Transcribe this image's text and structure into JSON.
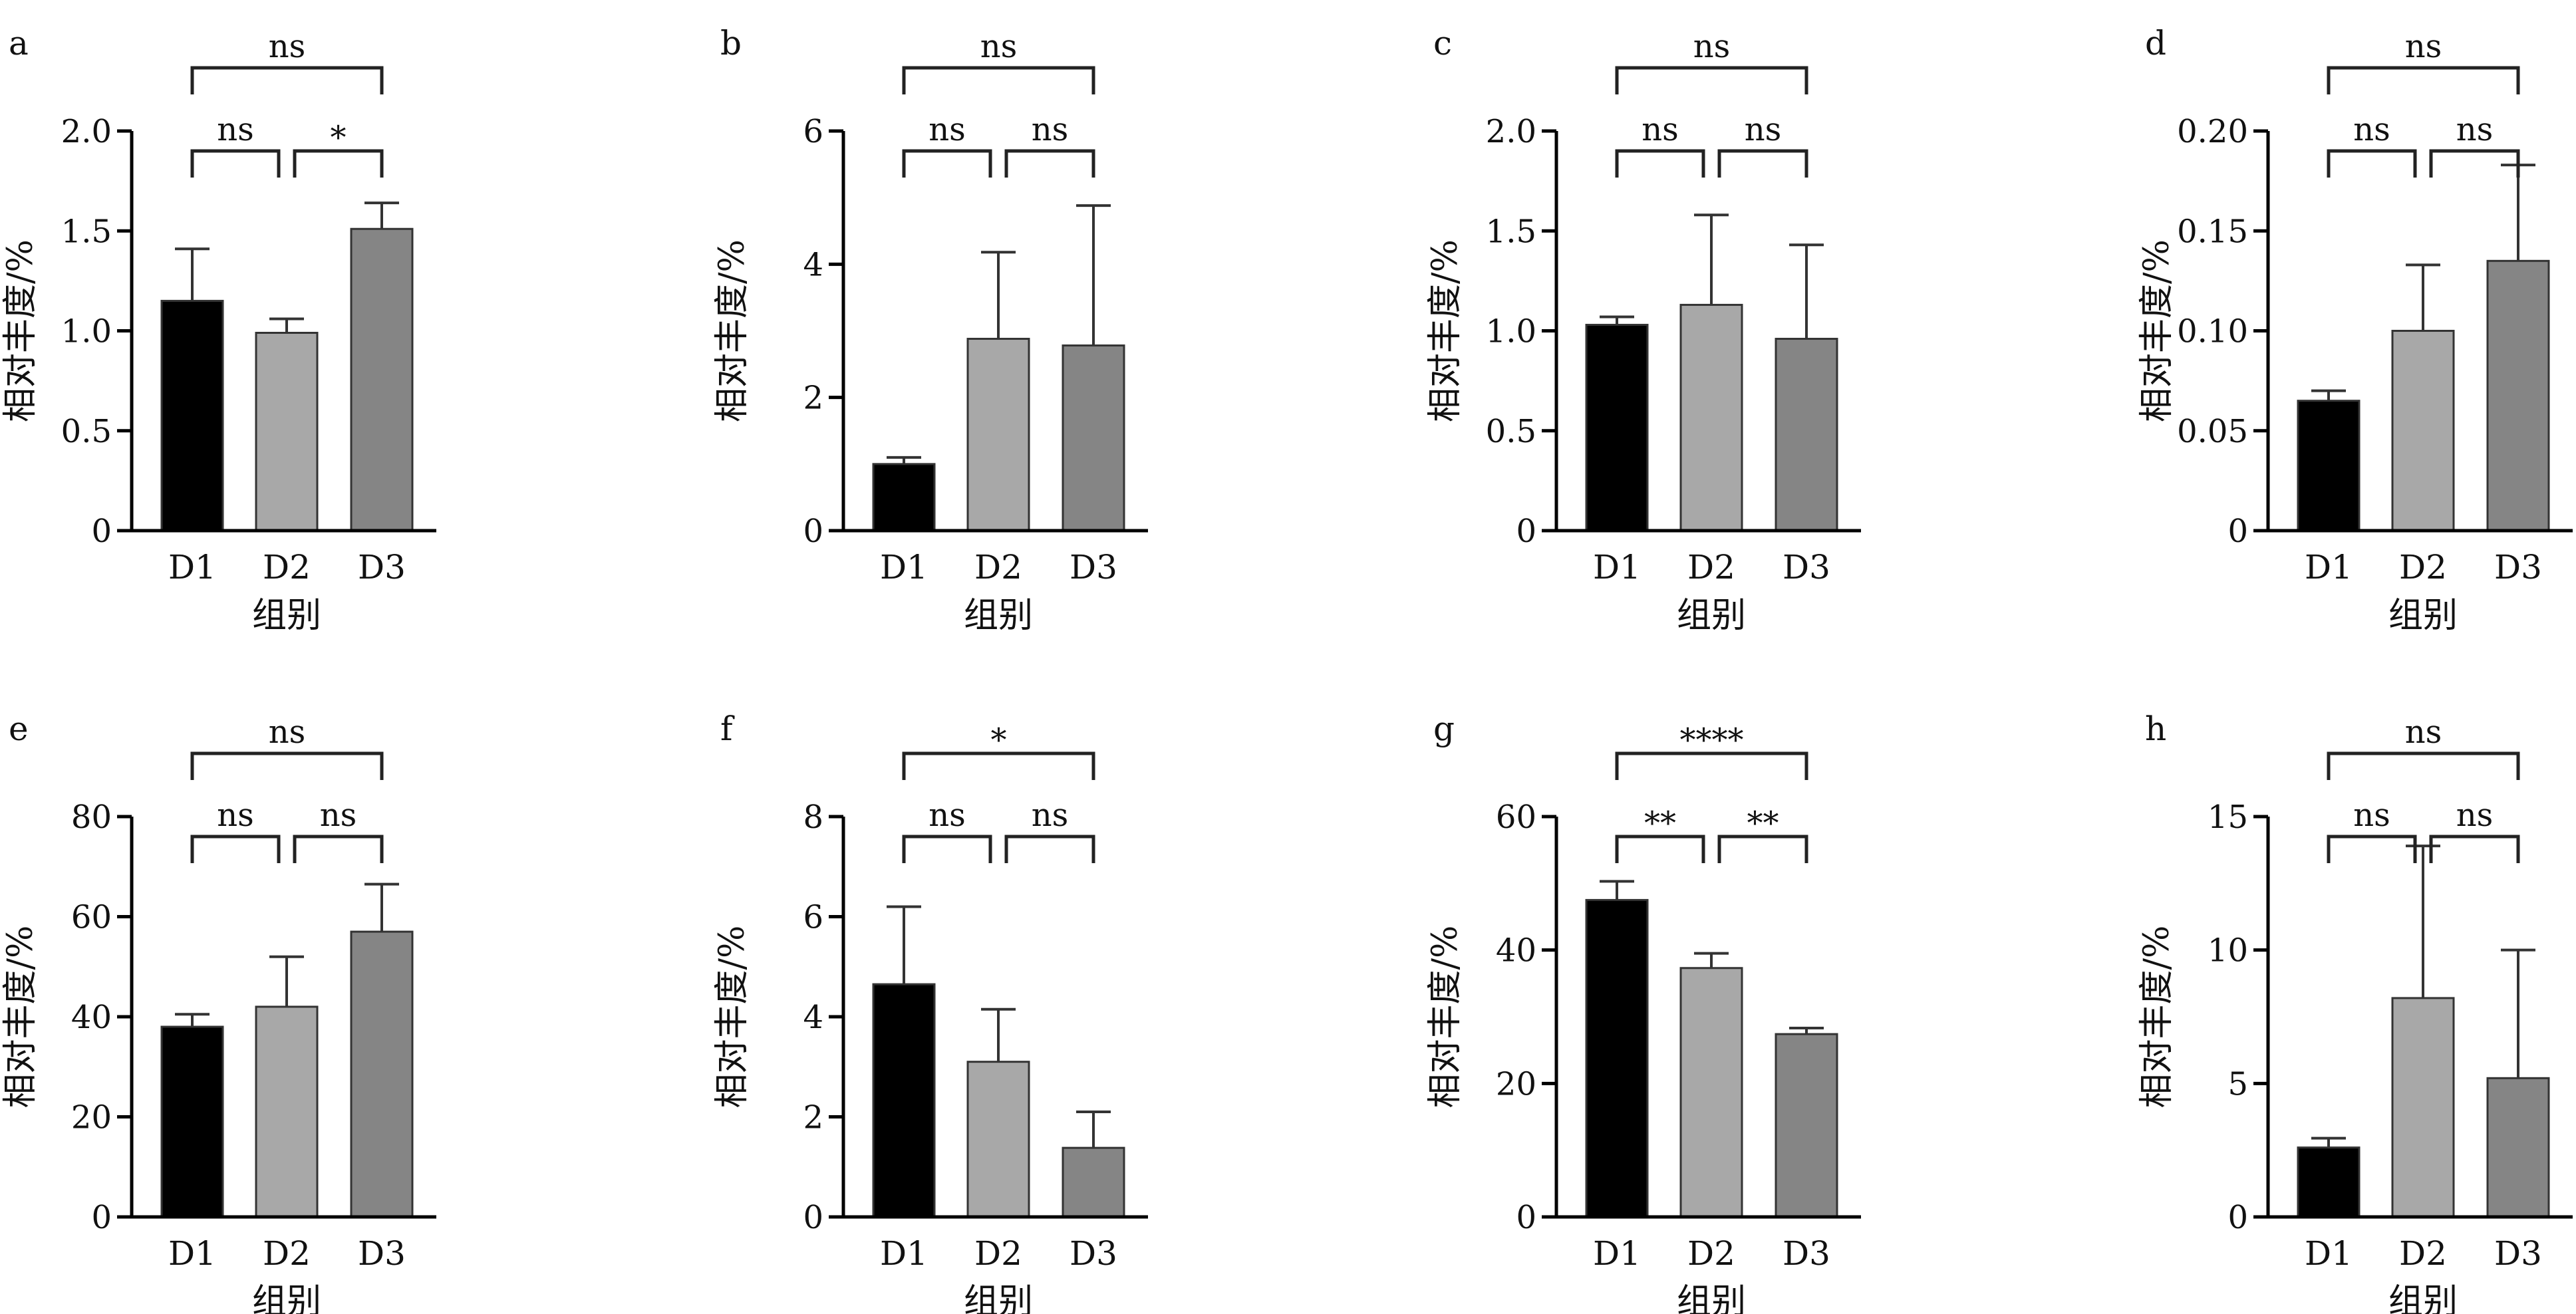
{
  "colors": {
    "D1": "#000000",
    "D2": "#a8a8a8",
    "D3": "#858585",
    "axis": "#000000",
    "bar_outline": "#333333"
  },
  "chart_data": [
    {
      "panel": "a",
      "type": "bar",
      "categories": [
        "D1",
        "D2",
        "D3"
      ],
      "values": [
        1.15,
        0.99,
        1.51
      ],
      "errors": [
        0.26,
        0.07,
        0.13
      ],
      "xlabel": "组别",
      "ylabel": "相对丰度/%",
      "ylim": [
        0,
        2.0
      ],
      "yticks": [
        "0",
        "0.5",
        "1.0",
        "1.5",
        "2.0"
      ],
      "comparisons": [
        {
          "pair": [
            "D1",
            "D2"
          ],
          "label": "ns"
        },
        {
          "pair": [
            "D2",
            "D3"
          ],
          "label": "*"
        },
        {
          "pair": [
            "D1",
            "D3"
          ],
          "label": "ns"
        }
      ]
    },
    {
      "panel": "b",
      "type": "bar",
      "categories": [
        "D1",
        "D2",
        "D3"
      ],
      "values": [
        1.0,
        2.88,
        2.78
      ],
      "errors": [
        0.1,
        1.3,
        2.1
      ],
      "xlabel": "组别",
      "ylabel": "相对丰度/%",
      "ylim": [
        0,
        6
      ],
      "yticks": [
        "0",
        "2",
        "4",
        "6"
      ],
      "comparisons": [
        {
          "pair": [
            "D1",
            "D2"
          ],
          "label": "ns"
        },
        {
          "pair": [
            "D2",
            "D3"
          ],
          "label": "ns"
        },
        {
          "pair": [
            "D1",
            "D3"
          ],
          "label": "ns"
        }
      ]
    },
    {
      "panel": "c",
      "type": "bar",
      "categories": [
        "D1",
        "D2",
        "D3"
      ],
      "values": [
        1.03,
        1.13,
        0.96
      ],
      "errors": [
        0.04,
        0.45,
        0.47
      ],
      "xlabel": "组别",
      "ylabel": "相对丰度/%",
      "ylim": [
        0,
        2.0
      ],
      "yticks": [
        "0",
        "0.5",
        "1.0",
        "1.5",
        "2.0"
      ],
      "comparisons": [
        {
          "pair": [
            "D1",
            "D2"
          ],
          "label": "ns"
        },
        {
          "pair": [
            "D2",
            "D3"
          ],
          "label": "ns"
        },
        {
          "pair": [
            "D1",
            "D3"
          ],
          "label": "ns"
        }
      ]
    },
    {
      "panel": "d",
      "type": "bar",
      "categories": [
        "D1",
        "D2",
        "D3"
      ],
      "values": [
        0.065,
        0.1,
        0.135
      ],
      "errors": [
        0.005,
        0.033,
        0.048
      ],
      "xlabel": "组别",
      "ylabel": "相对丰度/%",
      "ylim": [
        0,
        0.2
      ],
      "yticks": [
        "0",
        "0.05",
        "0.10",
        "0.15",
        "0.20"
      ],
      "comparisons": [
        {
          "pair": [
            "D1",
            "D2"
          ],
          "label": "ns"
        },
        {
          "pair": [
            "D2",
            "D3"
          ],
          "label": "ns"
        },
        {
          "pair": [
            "D1",
            "D3"
          ],
          "label": "ns"
        }
      ]
    },
    {
      "panel": "e",
      "type": "bar",
      "categories": [
        "D1",
        "D2",
        "D3"
      ],
      "values": [
        38,
        42,
        57
      ],
      "errors": [
        2.5,
        10,
        9.5
      ],
      "xlabel": "组别",
      "ylabel": "相对丰度/%",
      "ylim": [
        0,
        80
      ],
      "yticks": [
        "0",
        "20",
        "40",
        "60",
        "80"
      ],
      "comparisons": [
        {
          "pair": [
            "D1",
            "D2"
          ],
          "label": "ns"
        },
        {
          "pair": [
            "D2",
            "D3"
          ],
          "label": "ns"
        },
        {
          "pair": [
            "D1",
            "D3"
          ],
          "label": "ns"
        }
      ]
    },
    {
      "panel": "f",
      "type": "bar",
      "categories": [
        "D1",
        "D2",
        "D3"
      ],
      "values": [
        4.65,
        3.1,
        1.38
      ],
      "errors": [
        1.55,
        1.05,
        0.72
      ],
      "xlabel": "组别",
      "ylabel": "相对丰度/%",
      "ylim": [
        0,
        8
      ],
      "yticks": [
        "0",
        "2",
        "4",
        "6",
        "8"
      ],
      "comparisons": [
        {
          "pair": [
            "D1",
            "D2"
          ],
          "label": "ns"
        },
        {
          "pair": [
            "D2",
            "D3"
          ],
          "label": "ns"
        },
        {
          "pair": [
            "D1",
            "D3"
          ],
          "label": "*"
        }
      ]
    },
    {
      "panel": "g",
      "type": "bar",
      "categories": [
        "D1",
        "D2",
        "D3"
      ],
      "values": [
        47.5,
        37.3,
        27.4
      ],
      "errors": [
        2.8,
        2.2,
        0.9
      ],
      "xlabel": "组别",
      "ylabel": "相对丰度/%",
      "ylim": [
        0,
        60
      ],
      "yticks": [
        "0",
        "20",
        "40",
        "60"
      ],
      "comparisons": [
        {
          "pair": [
            "D1",
            "D2"
          ],
          "label": "**"
        },
        {
          "pair": [
            "D2",
            "D3"
          ],
          "label": "**"
        },
        {
          "pair": [
            "D1",
            "D3"
          ],
          "label": "****"
        }
      ]
    },
    {
      "panel": "h",
      "type": "bar",
      "categories": [
        "D1",
        "D2",
        "D3"
      ],
      "values": [
        2.6,
        8.2,
        5.2
      ],
      "errors": [
        0.35,
        5.7,
        4.8
      ],
      "xlabel": "组别",
      "ylabel": "相对丰度/%",
      "ylim": [
        0,
        15
      ],
      "yticks": [
        "0",
        "5",
        "10",
        "15"
      ],
      "comparisons": [
        {
          "pair": [
            "D1",
            "D2"
          ],
          "label": "ns"
        },
        {
          "pair": [
            "D2",
            "D3"
          ],
          "label": "ns"
        },
        {
          "pair": [
            "D1",
            "D3"
          ],
          "label": "ns"
        }
      ]
    }
  ]
}
